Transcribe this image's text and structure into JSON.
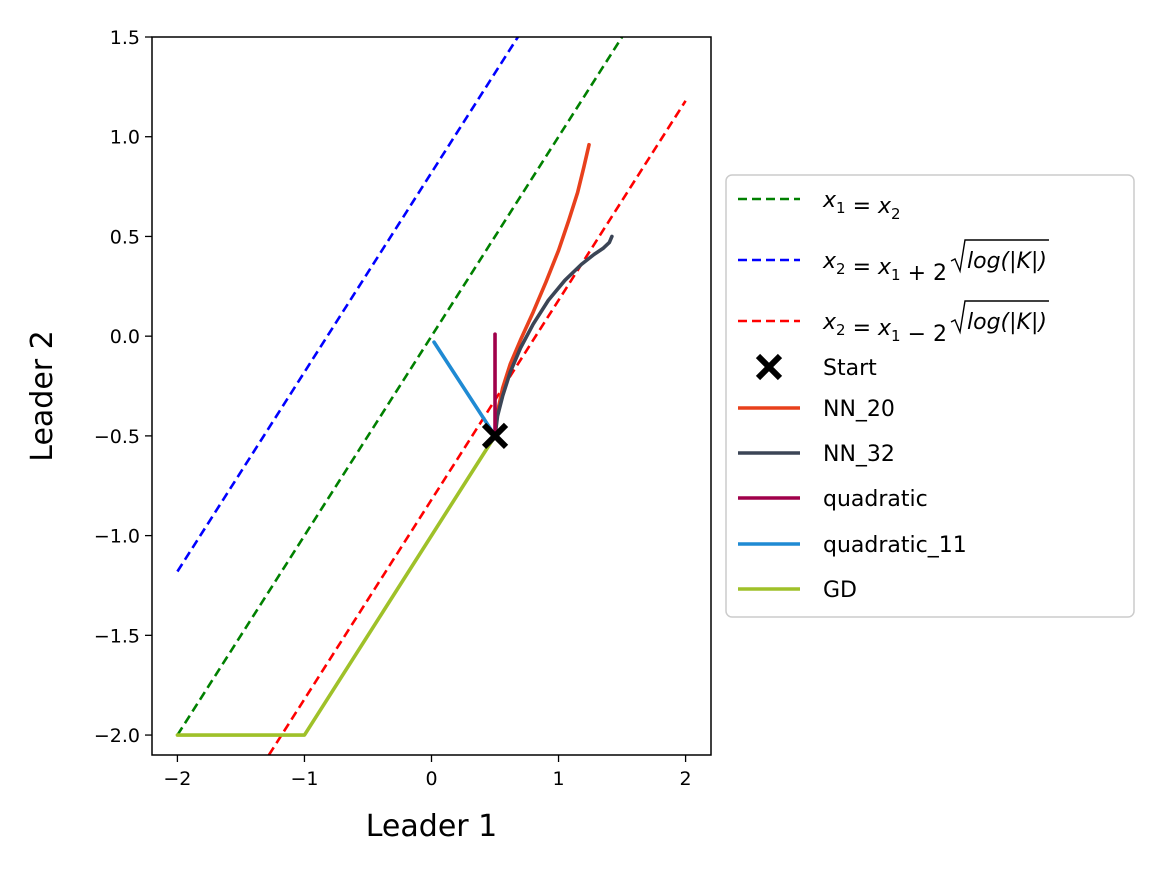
{
  "chart_data": {
    "type": "line",
    "title": "",
    "xlabel": "Leader 1",
    "ylabel": "Leader 2",
    "xlim": [
      -2.2,
      2.2
    ],
    "ylim": [
      -2.1,
      1.5
    ],
    "xticks": [
      -2,
      -1,
      0,
      1,
      2
    ],
    "yticks": [
      -2.0,
      -1.5,
      -1.0,
      -0.5,
      0.0,
      0.5,
      1.0,
      1.5
    ],
    "xtick_labels": [
      "−2",
      "−1",
      "0",
      "1",
      "2"
    ],
    "ytick_labels": [
      "−2.0",
      "−1.5",
      "−1.0",
      "−0.5",
      "0.0",
      "0.5",
      "1.0",
      "1.5"
    ],
    "grid": false,
    "legend_position": "right-outside",
    "series": [
      {
        "name": "x₁ = x₂",
        "legend_parts": [
          {
            "t": "x",
            "sub": "1"
          },
          {
            "t": " = ",
            "up": true
          },
          {
            "t": "x",
            "sub": "2"
          }
        ],
        "style": "dashed",
        "color": "#008000",
        "x": [
          -2.0,
          1.5
        ],
        "y": [
          -2.0,
          1.5
        ]
      },
      {
        "name": "x₂ = x₁ + 2√log(|K|)",
        "legend_parts": [
          {
            "t": "x",
            "sub": "2"
          },
          {
            "t": " = ",
            "up": true
          },
          {
            "t": "x",
            "sub": "1"
          },
          {
            "t": " + 2",
            "up": true
          },
          {
            "sqrt": "log(|K|)"
          }
        ],
        "style": "dashed",
        "color": "#0000ff",
        "x": [
          -2.0,
          0.68
        ],
        "y": [
          -1.18,
          1.5
        ]
      },
      {
        "name": "x₂ = x₁ − 2√log(|K|)",
        "legend_parts": [
          {
            "t": "x",
            "sub": "2"
          },
          {
            "t": " = ",
            "up": true
          },
          {
            "t": "x",
            "sub": "1"
          },
          {
            "t": " − 2",
            "up": true
          },
          {
            "sqrt": "log(|K|)"
          }
        ],
        "style": "dashed",
        "color": "#ff0000",
        "x": [
          -1.28,
          2.0
        ],
        "y": [
          -2.1,
          1.18
        ]
      },
      {
        "name": "Start",
        "type": "marker",
        "marker": "x",
        "color": "#000000",
        "x": [
          0.5
        ],
        "y": [
          -0.5
        ]
      },
      {
        "name": "NN_20",
        "style": "solid",
        "color": "#e8401c",
        "x": [
          0.5,
          0.52,
          0.56,
          0.62,
          0.7,
          0.8,
          0.9,
          1.0,
          1.08,
          1.15,
          1.2,
          1.24
        ],
        "y": [
          -0.5,
          -0.38,
          -0.26,
          -0.14,
          -0.02,
          0.12,
          0.27,
          0.43,
          0.58,
          0.72,
          0.85,
          0.96
        ]
      },
      {
        "name": "NN_32",
        "style": "solid",
        "color": "#3b4556",
        "x": [
          0.5,
          0.52,
          0.56,
          0.62,
          0.7,
          0.8,
          0.92,
          1.05,
          1.18,
          1.28,
          1.35,
          1.4,
          1.42
        ],
        "y": [
          -0.5,
          -0.4,
          -0.3,
          -0.18,
          -0.06,
          0.06,
          0.18,
          0.28,
          0.36,
          0.41,
          0.44,
          0.47,
          0.5
        ]
      },
      {
        "name": "quadratic",
        "style": "solid",
        "color": "#a0004a",
        "x": [
          0.5,
          0.5
        ],
        "y": [
          -0.5,
          0.01
        ]
      },
      {
        "name": "quadratic_11",
        "style": "solid",
        "color": "#1f8ad3",
        "x": [
          0.5,
          0.02
        ],
        "y": [
          -0.5,
          -0.03
        ]
      },
      {
        "name": "GD",
        "style": "solid",
        "color": "#9fc129",
        "x": [
          0.5,
          -1.0,
          -2.0
        ],
        "y": [
          -0.5,
          -2.0,
          -2.0
        ]
      }
    ]
  }
}
